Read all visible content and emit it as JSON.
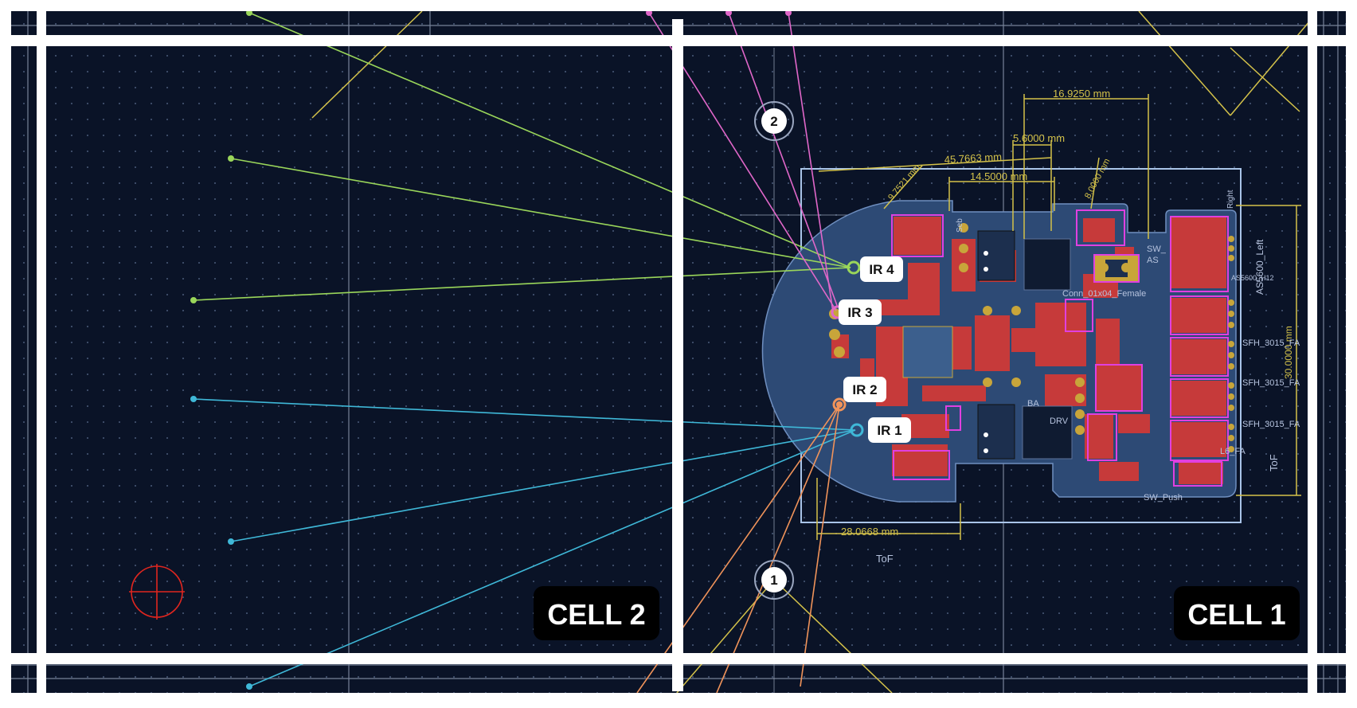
{
  "cells": {
    "cell_2_label": "CELL 2",
    "cell_1_label": "CELL 1"
  },
  "markers": {
    "marker_1": "1",
    "marker_2": "2"
  },
  "sensors": {
    "ir_1": "IR 1",
    "ir_2": "IR 2",
    "ir_3": "IR 3",
    "ir_4": "IR 4"
  },
  "dimensions": {
    "top_width": "16.9250 mm",
    "mid_width": "5.6000 mm",
    "overall_width": "45.7663 mm",
    "inner_width": "14.5000 mm",
    "angled_left": "9.7521 mm",
    "angled_right": "8.0000 mm",
    "bottom_width": "28.0668 mm",
    "right_height": "30.0000 mm"
  },
  "silkscreen": {
    "tof_bottom": "ToF",
    "tof_right": "ToF",
    "sw_push": "SW_Push",
    "as5600_left": "AS5600_Left",
    "sfh_1": "SFH_3015_FA",
    "sfh_2": "SFH_3015_FA",
    "sfh_3": "SFH_3015_FA",
    "l6_fa": "L6_FA",
    "drv": "DRV",
    "conn": "Conn_01x04_Female",
    "ba": "BA",
    "sw_a": "SW_",
    "as_a": "AS",
    "h12": "AS5600_H12",
    "right_lbl": "Right",
    "seb": "Seb"
  },
  "colors": {
    "canvas": "#0a1327",
    "grid_dot": "#3b4a66",
    "white_frame": "#ffffff",
    "pcb_outline": "#a9c4e8",
    "board_fill": "#2d4a75",
    "copper_red": "#c63a3a",
    "pad_gold": "#c8a53a",
    "courtyard_pink": "#e040e0",
    "dimension_yellow": "#d4c24a",
    "ratsnest_green": "#9ad65a",
    "ratsnest_cyan": "#3fb8d8",
    "ratsnest_pink": "#e067c9",
    "ratsnest_orange": "#f0935a",
    "origin_red": "#e0261f"
  }
}
